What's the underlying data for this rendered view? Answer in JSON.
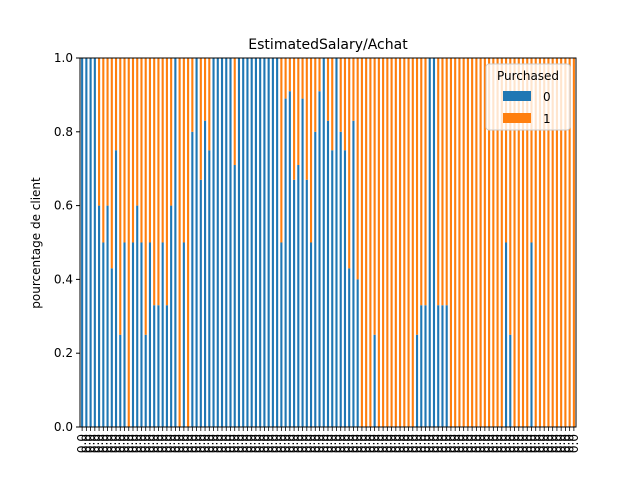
{
  "chart_data": {
    "type": "bar",
    "stacked": true,
    "title": "EstimatedSalary/Achat",
    "xlabel": "",
    "ylabel": "pourcentage de client",
    "ylim": [
      0,
      1
    ],
    "yticks": [
      "0.0",
      "0.2",
      "0.4",
      "0.6",
      "0.8",
      "1.0"
    ],
    "category_tick_label": "0.0",
    "categories_count": 117,
    "legend": {
      "title": "Purchased",
      "position": "top-right"
    },
    "series": [
      {
        "name": "0",
        "color": "#1f77b4",
        "values": [
          1,
          1,
          1,
          1,
          0.6,
          0.5,
          0.6,
          0.43,
          0.75,
          0.25,
          0.5,
          0,
          0.5,
          0.6,
          0.5,
          0.25,
          0.5,
          0.33,
          0.33,
          0.5,
          0.33,
          0.6,
          1,
          0,
          0.5,
          0,
          0.8,
          1,
          0.67,
          0.83,
          0.75,
          1,
          1,
          1,
          1,
          1,
          0.71,
          1,
          1,
          1,
          1,
          1,
          1,
          1,
          1,
          1,
          1,
          0.5,
          0.89,
          0.91,
          0.67,
          0.71,
          0.89,
          0.67,
          0.5,
          0.8,
          0.91,
          1,
          0.83,
          0.75,
          1,
          0.8,
          0.75,
          0.43,
          0.83,
          0.4,
          0,
          0,
          0,
          0.25,
          0,
          0,
          0,
          0,
          0,
          0,
          0,
          0,
          0,
          0.25,
          0.33,
          0.33,
          1,
          1,
          0.33,
          0.33,
          0.33,
          0,
          0,
          0,
          0,
          0,
          0,
          0,
          0,
          0,
          0,
          0,
          0,
          0,
          0.5,
          0.25,
          0,
          0,
          0,
          0,
          0.5,
          0,
          0,
          0,
          0,
          0,
          0,
          0,
          0,
          0,
          0
        ]
      },
      {
        "name": "1",
        "color": "#ff7f0e",
        "values": [
          0,
          0,
          0,
          0,
          0.4,
          0.5,
          0.4,
          0.57,
          0.25,
          0.75,
          0.5,
          1,
          0.5,
          0.4,
          0.5,
          0.75,
          0.5,
          0.67,
          0.67,
          0.5,
          0.67,
          0.4,
          0,
          1,
          0.5,
          1,
          0.2,
          0,
          0.33,
          0.17,
          0.25,
          0,
          0,
          0,
          0,
          0,
          0.29,
          0,
          0,
          0,
          0,
          0,
          0,
          0,
          0,
          0,
          0,
          0.5,
          0.11,
          0.09,
          0.33,
          0.29,
          0.11,
          0.33,
          0.5,
          0.2,
          0.09,
          0,
          0.17,
          0.25,
          0,
          0.2,
          0.25,
          0.57,
          0.17,
          0.6,
          1,
          1,
          1,
          0.75,
          1,
          1,
          1,
          1,
          1,
          1,
          1,
          1,
          1,
          0.75,
          0.67,
          0.67,
          0,
          0,
          0.67,
          0.67,
          0.67,
          1,
          1,
          1,
          1,
          1,
          1,
          1,
          1,
          1,
          1,
          1,
          1,
          1,
          0.5,
          0.75,
          1,
          1,
          1,
          1,
          0.5,
          1,
          1,
          1,
          1,
          1,
          1,
          1,
          1,
          1,
          1
        ]
      }
    ]
  }
}
